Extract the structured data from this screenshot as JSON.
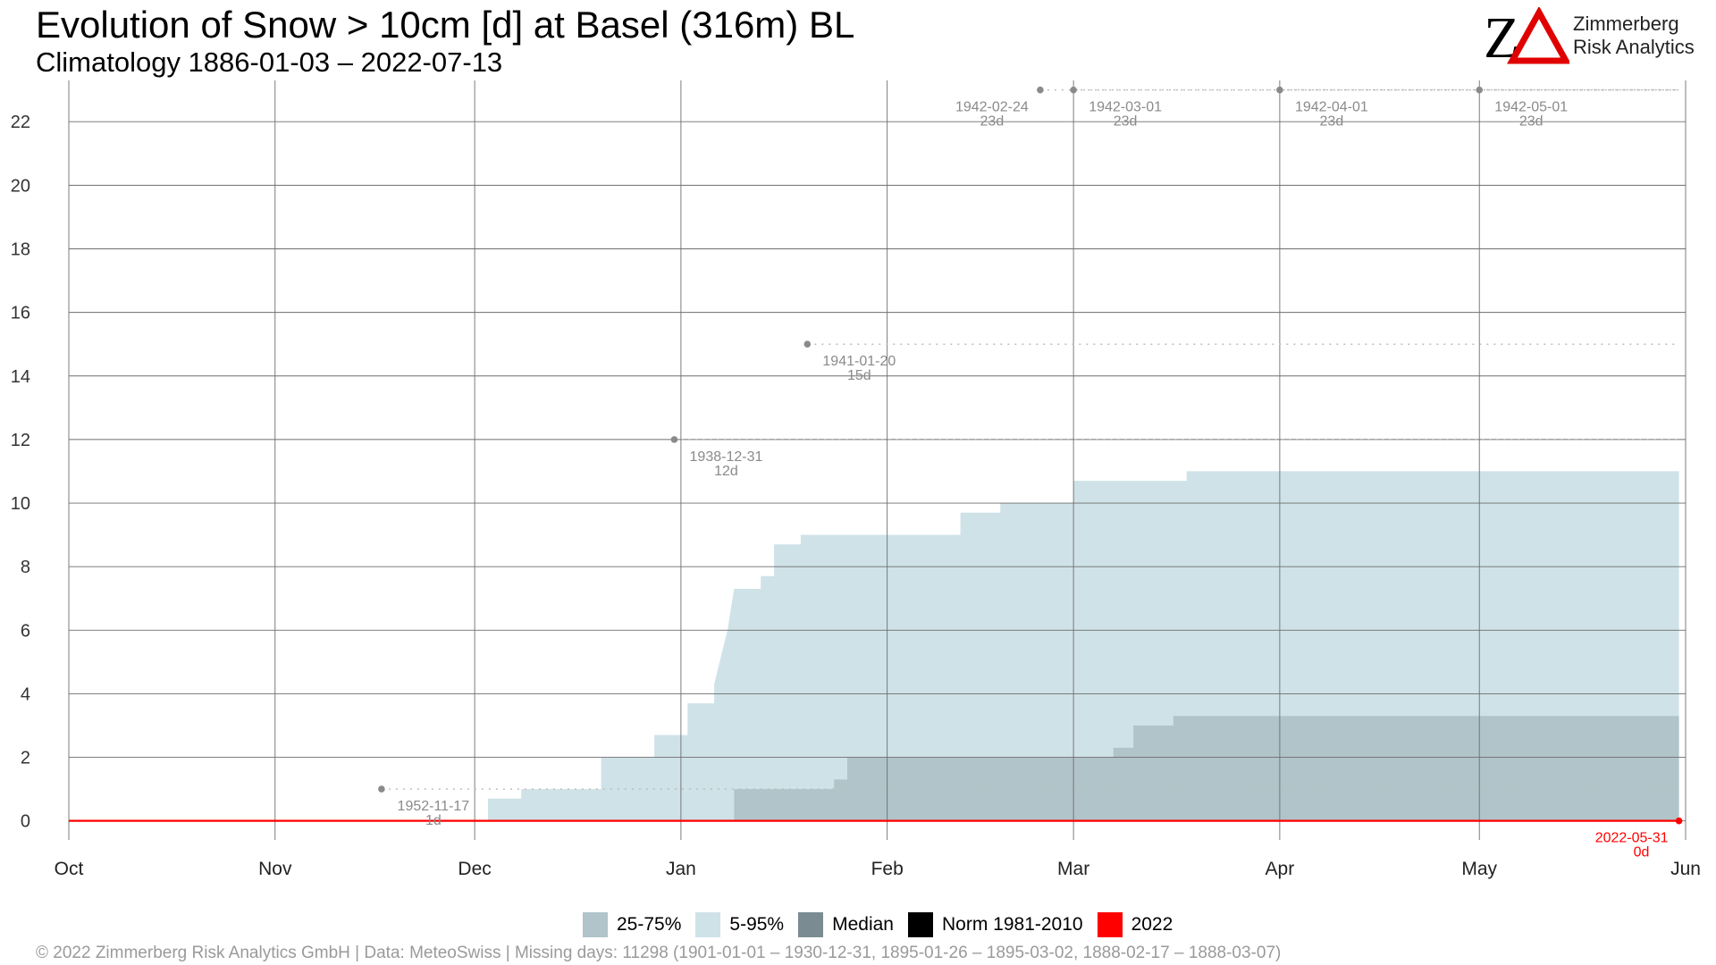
{
  "header": {
    "title": "Evolution of Snow > 10cm [d] at Basel (316m) BL",
    "subtitle": "Climatology 1886-01-03 – 2022-07-13"
  },
  "logo": {
    "mark_text": "ZΔ",
    "line1": "Zimmerberg",
    "line2": "Risk Analytics"
  },
  "legend": {
    "items": [
      {
        "label": "25-75%",
        "color": "#b0c4c9"
      },
      {
        "label": "5-95%",
        "color": "#cfe2e8"
      },
      {
        "label": "Median",
        "color": "#7a8c92"
      },
      {
        "label": "Norm 1981-2010",
        "color": "#000000"
      },
      {
        "label": "2022",
        "color": "#ff0000"
      }
    ]
  },
  "footer": {
    "text": "©  2022 Zimmerberg Risk Analytics GmbH | Data: MeteoSwiss | Missing days: 11298 (1901-01-01 – 1930-12-31, 1895-01-26 – 1895-03-02, 1888-02-17 – 1888-03-07)"
  },
  "chart_data": {
    "type": "area",
    "xlabel": "",
    "ylabel": "",
    "x_unit": "day of season (0 = Oct 1)",
    "xlim": [
      0,
      243
    ],
    "ylim": [
      -0.6,
      23.3
    ],
    "y_ticks": [
      0,
      2,
      4,
      6,
      8,
      10,
      12,
      14,
      16,
      18,
      20,
      22
    ],
    "x_ticks": [
      {
        "label": "Oct",
        "day": 0
      },
      {
        "label": "Nov",
        "day": 31
      },
      {
        "label": "Dec",
        "day": 61
      },
      {
        "label": "Jan",
        "day": 92
      },
      {
        "label": "Feb",
        "day": 123
      },
      {
        "label": "Mar",
        "day": 151
      },
      {
        "label": "Apr",
        "day": 182
      },
      {
        "label": "May",
        "day": 212
      },
      {
        "label": "Jun",
        "day": 243
      }
    ],
    "grid": true,
    "legend_position": "bottom",
    "series": [
      {
        "name": "5-95%",
        "color": "#cfe2e8",
        "x": [
          0,
          63,
          63,
          66,
          66,
          68,
          68,
          78,
          78,
          80,
          80,
          82,
          82,
          88,
          88,
          90,
          90,
          93,
          93,
          95,
          95,
          97,
          97,
          99,
          100,
          101,
          101,
          104,
          104,
          106,
          106,
          110,
          110,
          112,
          112,
          132,
          132,
          134,
          134,
          138,
          138,
          140,
          140,
          149,
          149,
          151,
          151,
          168,
          168,
          242
        ],
        "y": [
          0,
          0,
          0.7,
          0.7,
          0.7,
          0.7,
          1.0,
          1.0,
          1.0,
          1.0,
          2.0,
          2.0,
          2.0,
          2.0,
          2.7,
          2.7,
          2.7,
          2.7,
          3.7,
          3.7,
          3.7,
          3.7,
          4.3,
          6.0,
          7.3,
          7.3,
          7.3,
          7.3,
          7.7,
          7.7,
          8.7,
          8.7,
          9.0,
          9.0,
          9.0,
          9.0,
          9.0,
          9.0,
          9.7,
          9.7,
          9.7,
          9.7,
          10.0,
          10.0,
          10.0,
          10.0,
          10.7,
          10.7,
          11.0,
          11.0
        ]
      },
      {
        "name": "25-75%",
        "color": "#b0c4c9",
        "x": [
          0,
          100,
          100,
          115,
          115,
          117,
          117,
          119,
          119,
          157,
          157,
          160,
          160,
          163,
          163,
          166,
          166,
          242
        ],
        "y": [
          0,
          0,
          1.0,
          1.0,
          1.3,
          1.3,
          2.0,
          2.0,
          2.0,
          2.0,
          2.3,
          2.3,
          3.0,
          3.0,
          3.0,
          3.0,
          3.3,
          3.3
        ]
      },
      {
        "name": "2022",
        "color": "#ff0000",
        "x": [
          0,
          242
        ],
        "y": [
          0,
          0
        ]
      }
    ],
    "annotations": [
      {
        "label": "1952-11-17",
        "sublabel": "1d",
        "x": 47,
        "y": 1
      },
      {
        "label": "1938-12-31",
        "sublabel": "12d",
        "x": 91,
        "y": 12
      },
      {
        "label": "1941-01-20",
        "sublabel": "15d",
        "x": 111,
        "y": 15
      },
      {
        "label": "1942-02-24",
        "sublabel": "23d",
        "x": 146,
        "y": 23
      },
      {
        "label": "1942-03-01",
        "sublabel": "23d",
        "x": 151,
        "y": 23
      },
      {
        "label": "1942-04-01",
        "sublabel": "23d",
        "x": 182,
        "y": 23
      },
      {
        "label": "1942-05-01",
        "sublabel": "23d",
        "x": 212,
        "y": 23
      },
      {
        "label": "2022-05-31",
        "sublabel": "0d",
        "x": 242,
        "y": 0,
        "color": "#ff0000"
      }
    ]
  }
}
